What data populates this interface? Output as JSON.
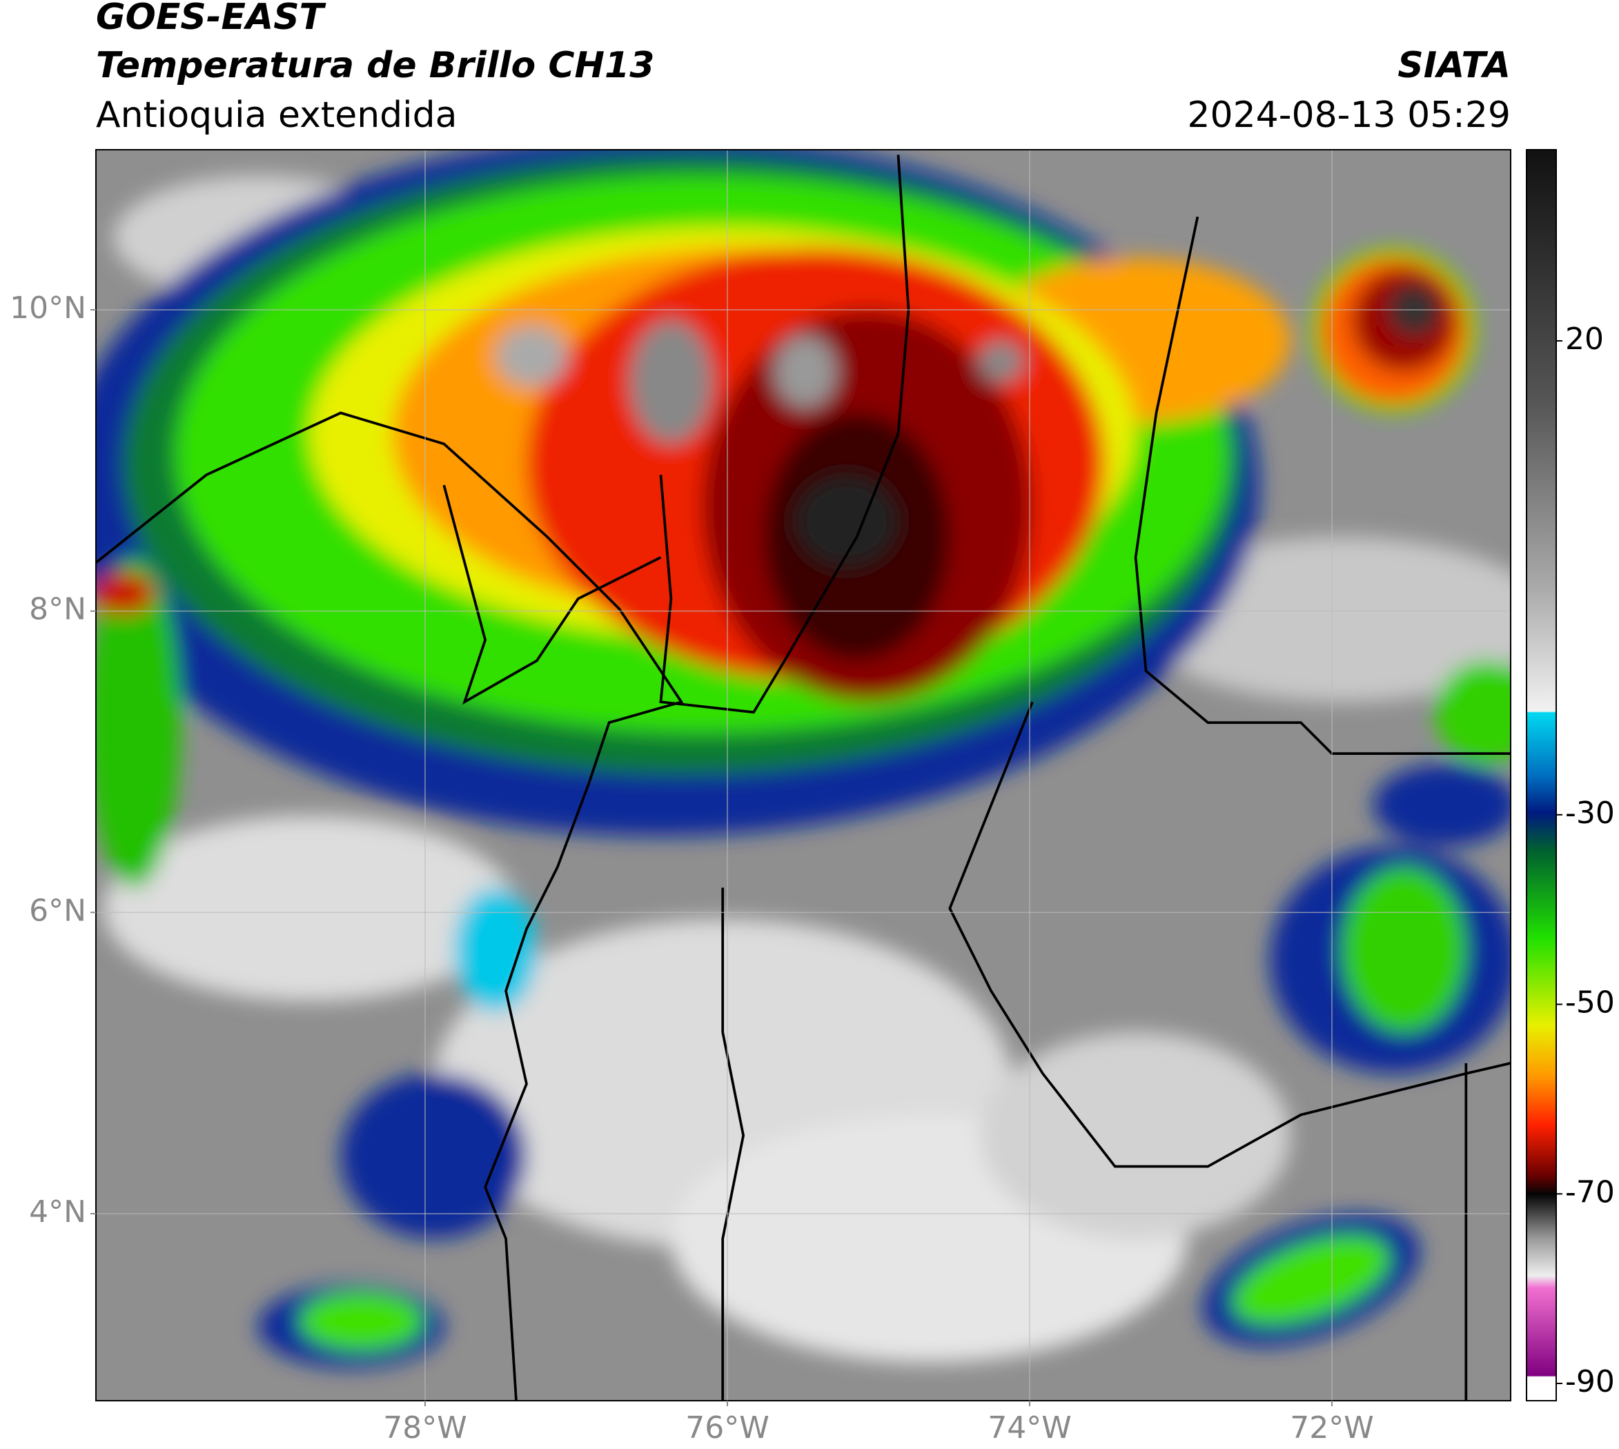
{
  "header": {
    "title": "GOES-EAST",
    "subtitle": "Temperatura de Brillo CH13",
    "region": "Antioquia extendida",
    "source": "SIATA",
    "timestamp": "2024-08-13 05:29"
  },
  "map": {
    "lon_ticks": [
      {
        "value": -78,
        "label": "78°W"
      },
      {
        "value": -76,
        "label": "76°W"
      },
      {
        "value": -74,
        "label": "74°W"
      },
      {
        "value": -72,
        "label": "72°W"
      }
    ],
    "lat_ticks": [
      {
        "value": 10,
        "label": "10°N"
      },
      {
        "value": 8,
        "label": "8°N"
      },
      {
        "value": 6,
        "label": "6°N"
      },
      {
        "value": 4,
        "label": "4°N"
      }
    ]
  },
  "colorbar": {
    "ticks": [
      20,
      -30,
      -50,
      -70,
      -90
    ]
  }
}
